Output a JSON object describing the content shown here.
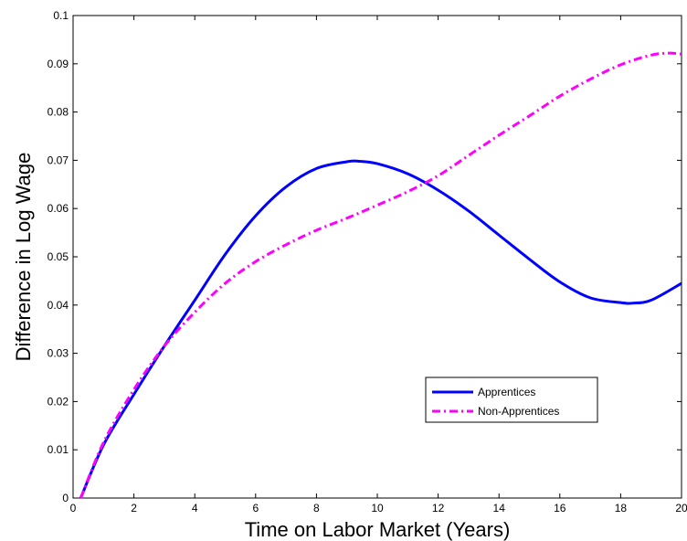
{
  "chart_data": {
    "type": "line",
    "title": "",
    "xlabel": "Time on Labor Market (Years)",
    "ylabel": "Difference in Log Wage",
    "xlim": [
      0,
      20
    ],
    "ylim": [
      0,
      0.1
    ],
    "xticks": [
      0,
      2,
      4,
      6,
      8,
      10,
      12,
      14,
      16,
      18,
      20
    ],
    "yticks": [
      0,
      0.01,
      0.02,
      0.03,
      0.04,
      0.05,
      0.06,
      0.07,
      0.08,
      0.09,
      0.1
    ],
    "xtick_labels": [
      "0",
      "2",
      "4",
      "6",
      "8",
      "10",
      "12",
      "14",
      "16",
      "18",
      "20"
    ],
    "ytick_labels": [
      "0",
      "0.01",
      "0.02",
      "0.03",
      "0.04",
      "0.05",
      "0.06",
      "0.07",
      "0.08",
      "0.09",
      "0.1"
    ],
    "grid": false,
    "legend_position": "bottom-right",
    "series": [
      {
        "name": "Apprentices",
        "color": "#0000FF",
        "line_style": "solid",
        "x": [
          0.25,
          1,
          2,
          3,
          4,
          5,
          6,
          7,
          8,
          9,
          9.4,
          10,
          11,
          12,
          13,
          14,
          15,
          16,
          17,
          18,
          18.4,
          19,
          20
        ],
        "y": [
          0.0,
          0.011,
          0.0215,
          0.0315,
          0.041,
          0.0505,
          0.0585,
          0.0645,
          0.0683,
          0.0697,
          0.0698,
          0.0693,
          0.0672,
          0.0638,
          0.0595,
          0.0545,
          0.0495,
          0.0448,
          0.0415,
          0.0405,
          0.0404,
          0.041,
          0.0445
        ]
      },
      {
        "name": "Non-Apprentices",
        "color": "#FF00FF",
        "line_style": "dash-dot",
        "x": [
          0.25,
          1,
          2,
          3,
          4,
          5,
          6,
          7,
          8,
          9,
          10,
          11,
          12,
          13,
          14,
          15,
          16,
          17,
          18,
          19,
          19.6,
          20
        ],
        "y": [
          0.0,
          0.0115,
          0.0225,
          0.0315,
          0.0385,
          0.0445,
          0.049,
          0.0525,
          0.0555,
          0.058,
          0.0607,
          0.0635,
          0.0668,
          0.071,
          0.0752,
          0.0792,
          0.0833,
          0.0868,
          0.0898,
          0.0918,
          0.0922,
          0.092
        ]
      }
    ]
  }
}
